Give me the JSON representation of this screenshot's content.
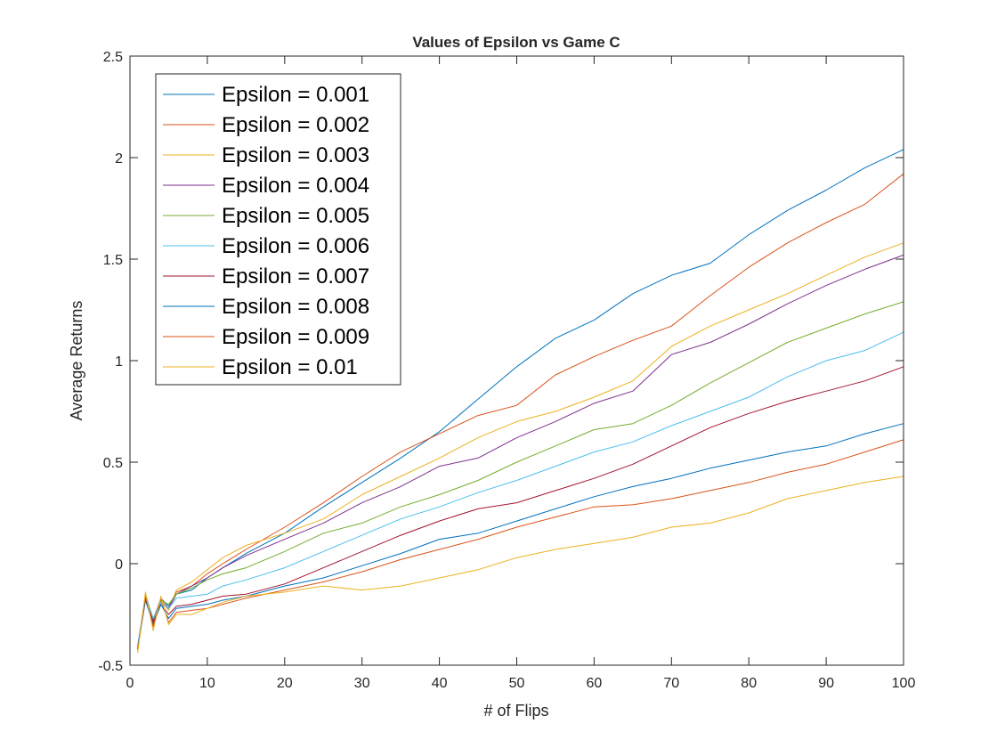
{
  "chart_data": {
    "type": "line",
    "title": "Values of Epsilon vs Game C",
    "xlabel": "# of Flips",
    "ylabel": "Average Returns",
    "xlim": [
      0,
      100
    ],
    "ylim": [
      -0.5,
      2.5
    ],
    "xticks": [
      0,
      10,
      20,
      30,
      40,
      50,
      60,
      70,
      80,
      90,
      100
    ],
    "xtick_labels": [
      "0",
      "10",
      "20",
      "30",
      "40",
      "50",
      "60",
      "70",
      "80",
      "90",
      "100"
    ],
    "yticks": [
      -0.5,
      0,
      0.5,
      1,
      1.5,
      2,
      2.5
    ],
    "ytick_labels": [
      "-0.5",
      "0",
      "0.5",
      "1",
      "1.5",
      "2",
      "2.5"
    ],
    "grid": false,
    "legend_position": "top-left",
    "series": [
      {
        "name": "Epsilon = 0.001",
        "color": "#0072BD",
        "points": [
          [
            1,
            -0.42
          ],
          [
            2,
            -0.15
          ],
          [
            3,
            -0.28
          ],
          [
            4,
            -0.17
          ],
          [
            5,
            -0.21
          ],
          [
            6,
            -0.15
          ],
          [
            8,
            -0.13
          ],
          [
            10,
            -0.07
          ],
          [
            12,
            -0.02
          ],
          [
            15,
            0.05
          ],
          [
            20,
            0.15
          ],
          [
            25,
            0.28
          ],
          [
            30,
            0.4
          ],
          [
            35,
            0.52
          ],
          [
            40,
            0.65
          ],
          [
            45,
            0.81
          ],
          [
            50,
            0.97
          ],
          [
            55,
            1.11
          ],
          [
            60,
            1.2
          ],
          [
            65,
            1.33
          ],
          [
            70,
            1.42
          ],
          [
            75,
            1.48
          ],
          [
            80,
            1.62
          ],
          [
            85,
            1.74
          ],
          [
            90,
            1.84
          ],
          [
            95,
            1.95
          ],
          [
            100,
            2.04
          ]
        ]
      },
      {
        "name": "Epsilon = 0.002",
        "color": "#D95319",
        "points": [
          [
            1,
            -0.41
          ],
          [
            2,
            -0.16
          ],
          [
            3,
            -0.27
          ],
          [
            4,
            -0.18
          ],
          [
            5,
            -0.22
          ],
          [
            6,
            -0.14
          ],
          [
            8,
            -0.11
          ],
          [
            10,
            -0.05
          ],
          [
            12,
            0.0
          ],
          [
            15,
            0.07
          ],
          [
            20,
            0.18
          ],
          [
            25,
            0.3
          ],
          [
            30,
            0.43
          ],
          [
            35,
            0.55
          ],
          [
            40,
            0.64
          ],
          [
            45,
            0.73
          ],
          [
            50,
            0.78
          ],
          [
            55,
            0.93
          ],
          [
            60,
            1.02
          ],
          [
            65,
            1.1
          ],
          [
            70,
            1.17
          ],
          [
            75,
            1.32
          ],
          [
            80,
            1.46
          ],
          [
            85,
            1.58
          ],
          [
            90,
            1.68
          ],
          [
            95,
            1.77
          ],
          [
            100,
            1.92
          ]
        ]
      },
      {
        "name": "Epsilon = 0.003",
        "color": "#EDB120",
        "points": [
          [
            1,
            -0.42
          ],
          [
            2,
            -0.17
          ],
          [
            3,
            -0.29
          ],
          [
            4,
            -0.18
          ],
          [
            5,
            -0.23
          ],
          [
            6,
            -0.13
          ],
          [
            8,
            -0.09
          ],
          [
            10,
            -0.03
          ],
          [
            12,
            0.03
          ],
          [
            15,
            0.09
          ],
          [
            20,
            0.15
          ],
          [
            25,
            0.22
          ],
          [
            30,
            0.34
          ],
          [
            35,
            0.43
          ],
          [
            40,
            0.52
          ],
          [
            45,
            0.62
          ],
          [
            50,
            0.7
          ],
          [
            55,
            0.75
          ],
          [
            60,
            0.82
          ],
          [
            65,
            0.9
          ],
          [
            70,
            1.07
          ],
          [
            75,
            1.17
          ],
          [
            80,
            1.25
          ],
          [
            85,
            1.33
          ],
          [
            90,
            1.42
          ],
          [
            95,
            1.51
          ],
          [
            100,
            1.58
          ]
        ]
      },
      {
        "name": "Epsilon = 0.004",
        "color": "#7E2F8E",
        "points": [
          [
            1,
            -0.42
          ],
          [
            2,
            -0.18
          ],
          [
            3,
            -0.28
          ],
          [
            4,
            -0.19
          ],
          [
            5,
            -0.22
          ],
          [
            6,
            -0.15
          ],
          [
            8,
            -0.11
          ],
          [
            10,
            -0.07
          ],
          [
            12,
            -0.02
          ],
          [
            15,
            0.04
          ],
          [
            20,
            0.12
          ],
          [
            25,
            0.2
          ],
          [
            30,
            0.3
          ],
          [
            35,
            0.38
          ],
          [
            40,
            0.48
          ],
          [
            45,
            0.52
          ],
          [
            50,
            0.62
          ],
          [
            55,
            0.7
          ],
          [
            60,
            0.79
          ],
          [
            65,
            0.85
          ],
          [
            70,
            1.03
          ],
          [
            75,
            1.09
          ],
          [
            80,
            1.18
          ],
          [
            85,
            1.28
          ],
          [
            90,
            1.37
          ],
          [
            95,
            1.45
          ],
          [
            100,
            1.52
          ]
        ]
      },
      {
        "name": "Epsilon = 0.005",
        "color": "#77AC30",
        "points": [
          [
            1,
            -0.41
          ],
          [
            2,
            -0.17
          ],
          [
            3,
            -0.29
          ],
          [
            4,
            -0.18
          ],
          [
            5,
            -0.2
          ],
          [
            6,
            -0.15
          ],
          [
            8,
            -0.12
          ],
          [
            10,
            -0.08
          ],
          [
            12,
            -0.05
          ],
          [
            15,
            -0.02
          ],
          [
            20,
            0.06
          ],
          [
            25,
            0.15
          ],
          [
            30,
            0.2
          ],
          [
            35,
            0.28
          ],
          [
            40,
            0.34
          ],
          [
            45,
            0.41
          ],
          [
            50,
            0.5
          ],
          [
            55,
            0.58
          ],
          [
            60,
            0.66
          ],
          [
            65,
            0.69
          ],
          [
            70,
            0.78
          ],
          [
            75,
            0.89
          ],
          [
            80,
            0.99
          ],
          [
            85,
            1.09
          ],
          [
            90,
            1.16
          ],
          [
            95,
            1.23
          ],
          [
            100,
            1.29
          ]
        ]
      },
      {
        "name": "Epsilon = 0.006",
        "color": "#4DBEEE",
        "points": [
          [
            1,
            -0.4
          ],
          [
            2,
            -0.16
          ],
          [
            3,
            -0.27
          ],
          [
            4,
            -0.19
          ],
          [
            5,
            -0.22
          ],
          [
            6,
            -0.17
          ],
          [
            8,
            -0.16
          ],
          [
            10,
            -0.15
          ],
          [
            12,
            -0.11
          ],
          [
            15,
            -0.08
          ],
          [
            20,
            -0.02
          ],
          [
            25,
            0.06
          ],
          [
            30,
            0.14
          ],
          [
            35,
            0.22
          ],
          [
            40,
            0.28
          ],
          [
            45,
            0.35
          ],
          [
            50,
            0.41
          ],
          [
            55,
            0.48
          ],
          [
            60,
            0.55
          ],
          [
            65,
            0.6
          ],
          [
            70,
            0.68
          ],
          [
            75,
            0.75
          ],
          [
            80,
            0.82
          ],
          [
            85,
            0.92
          ],
          [
            90,
            1.0
          ],
          [
            95,
            1.05
          ],
          [
            100,
            1.14
          ]
        ]
      },
      {
        "name": "Epsilon = 0.007",
        "color": "#A2142F",
        "points": [
          [
            1,
            -0.42
          ],
          [
            2,
            -0.17
          ],
          [
            3,
            -0.29
          ],
          [
            4,
            -0.2
          ],
          [
            5,
            -0.25
          ],
          [
            6,
            -0.21
          ],
          [
            8,
            -0.2
          ],
          [
            10,
            -0.18
          ],
          [
            12,
            -0.16
          ],
          [
            15,
            -0.15
          ],
          [
            20,
            -0.1
          ],
          [
            25,
            -0.02
          ],
          [
            30,
            0.06
          ],
          [
            35,
            0.14
          ],
          [
            40,
            0.21
          ],
          [
            45,
            0.27
          ],
          [
            50,
            0.3
          ],
          [
            55,
            0.36
          ],
          [
            60,
            0.42
          ],
          [
            65,
            0.49
          ],
          [
            70,
            0.58
          ],
          [
            75,
            0.67
          ],
          [
            80,
            0.74
          ],
          [
            85,
            0.8
          ],
          [
            90,
            0.85
          ],
          [
            95,
            0.9
          ],
          [
            100,
            0.97
          ]
        ]
      },
      {
        "name": "Epsilon = 0.008",
        "color": "#0072BD",
        "points": [
          [
            1,
            -0.42
          ],
          [
            2,
            -0.18
          ],
          [
            3,
            -0.3
          ],
          [
            4,
            -0.2
          ],
          [
            5,
            -0.27
          ],
          [
            6,
            -0.22
          ],
          [
            8,
            -0.21
          ],
          [
            10,
            -0.2
          ],
          [
            12,
            -0.18
          ],
          [
            15,
            -0.16
          ],
          [
            20,
            -0.11
          ],
          [
            25,
            -0.07
          ],
          [
            30,
            -0.01
          ],
          [
            35,
            0.05
          ],
          [
            40,
            0.12
          ],
          [
            45,
            0.15
          ],
          [
            50,
            0.21
          ],
          [
            55,
            0.27
          ],
          [
            60,
            0.33
          ],
          [
            65,
            0.38
          ],
          [
            70,
            0.42
          ],
          [
            75,
            0.47
          ],
          [
            80,
            0.51
          ],
          [
            85,
            0.55
          ],
          [
            90,
            0.58
          ],
          [
            95,
            0.64
          ],
          [
            100,
            0.69
          ]
        ]
      },
      {
        "name": "Epsilon = 0.009",
        "color": "#D95319",
        "points": [
          [
            1,
            -0.43
          ],
          [
            2,
            -0.16
          ],
          [
            3,
            -0.31
          ],
          [
            4,
            -0.17
          ],
          [
            5,
            -0.29
          ],
          [
            6,
            -0.24
          ],
          [
            8,
            -0.23
          ],
          [
            10,
            -0.22
          ],
          [
            12,
            -0.2
          ],
          [
            15,
            -0.17
          ],
          [
            20,
            -0.13
          ],
          [
            25,
            -0.09
          ],
          [
            30,
            -0.04
          ],
          [
            35,
            0.02
          ],
          [
            40,
            0.07
          ],
          [
            45,
            0.12
          ],
          [
            50,
            0.18
          ],
          [
            55,
            0.23
          ],
          [
            60,
            0.28
          ],
          [
            65,
            0.29
          ],
          [
            70,
            0.32
          ],
          [
            75,
            0.36
          ],
          [
            80,
            0.4
          ],
          [
            85,
            0.45
          ],
          [
            90,
            0.49
          ],
          [
            95,
            0.55
          ],
          [
            100,
            0.61
          ]
        ]
      },
      {
        "name": "Epsilon = 0.01",
        "color": "#EDB120",
        "points": [
          [
            1,
            -0.44
          ],
          [
            2,
            -0.14
          ],
          [
            3,
            -0.33
          ],
          [
            4,
            -0.16
          ],
          [
            5,
            -0.3
          ],
          [
            6,
            -0.25
          ],
          [
            8,
            -0.25
          ],
          [
            10,
            -0.22
          ],
          [
            12,
            -0.19
          ],
          [
            15,
            -0.16
          ],
          [
            20,
            -0.14
          ],
          [
            25,
            -0.11
          ],
          [
            30,
            -0.13
          ],
          [
            35,
            -0.11
          ],
          [
            40,
            -0.07
          ],
          [
            45,
            -0.03
          ],
          [
            50,
            0.03
          ],
          [
            55,
            0.07
          ],
          [
            60,
            0.1
          ],
          [
            65,
            0.13
          ],
          [
            70,
            0.18
          ],
          [
            75,
            0.2
          ],
          [
            80,
            0.25
          ],
          [
            85,
            0.32
          ],
          [
            90,
            0.36
          ],
          [
            95,
            0.4
          ],
          [
            100,
            0.43
          ]
        ]
      }
    ]
  }
}
